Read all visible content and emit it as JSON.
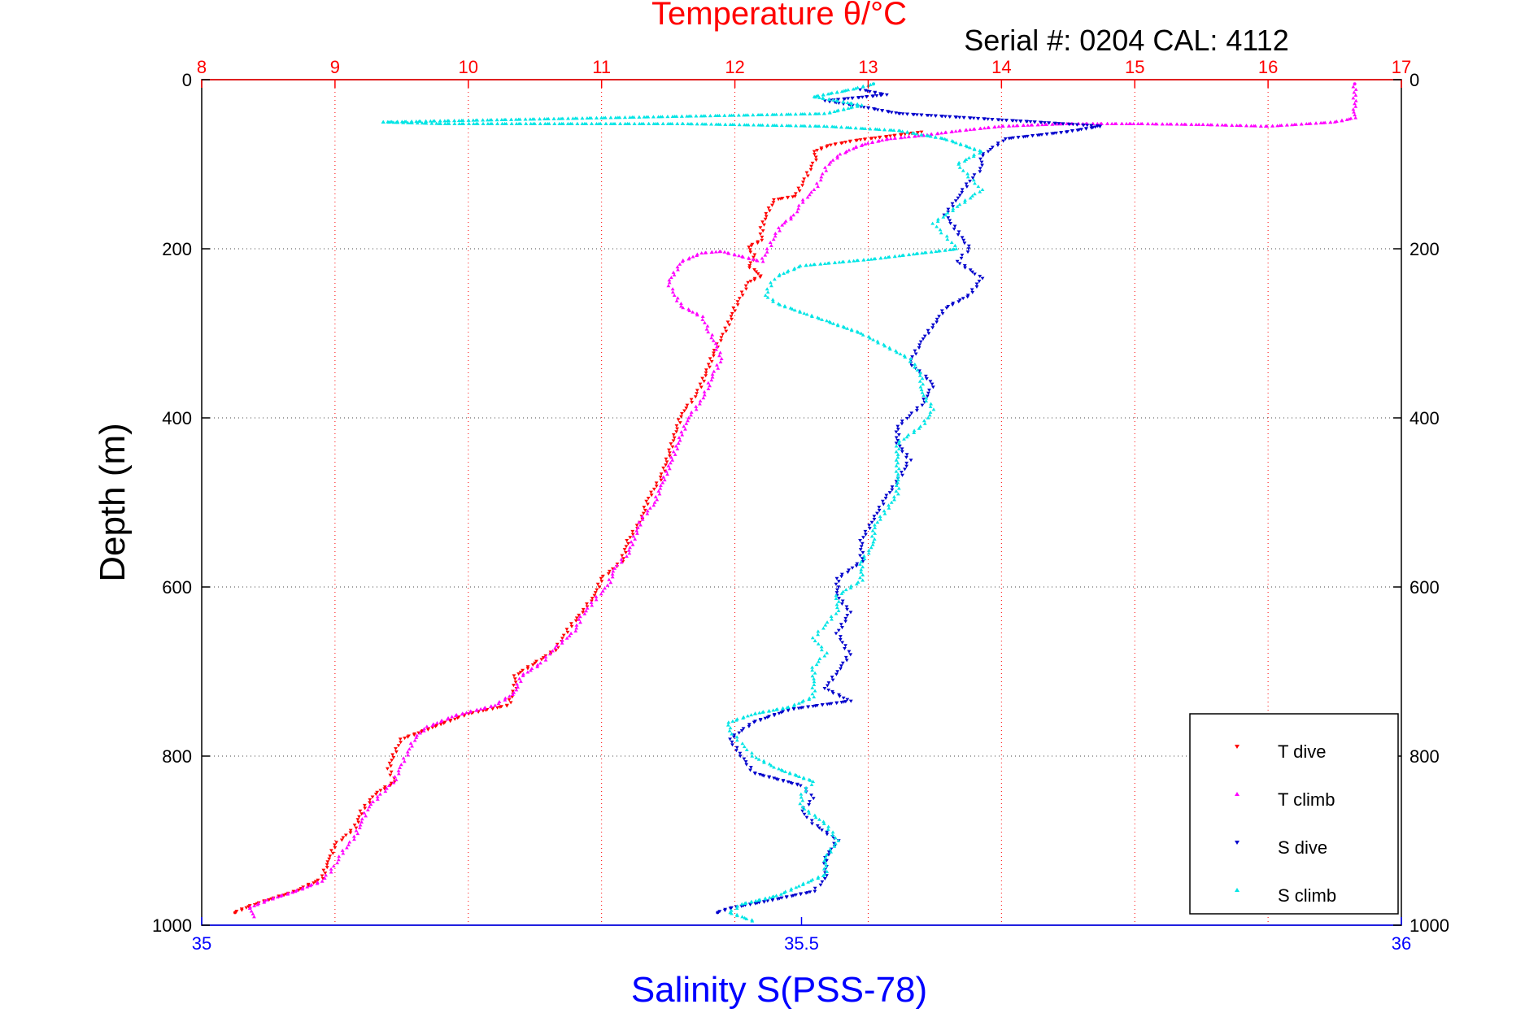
{
  "chart_data": {
    "type": "scatter",
    "title": "Temperature θ/°C",
    "subtitle": "Serial #: 0204  CAL: 4112",
    "ylabel": "Depth (m)",
    "xlabel_bottom": "Salinity S(PSS-78)",
    "xlabel_top": "Temperature θ/°C",
    "top_axis": {
      "range": [
        8,
        17
      ],
      "ticks": [
        8,
        9,
        10,
        11,
        12,
        13,
        14,
        15,
        16,
        17
      ]
    },
    "bottom_axis": {
      "range": [
        35,
        36
      ],
      "ticks": [
        35,
        35.5,
        36
      ]
    },
    "y_axis": {
      "range": [
        0,
        1000
      ],
      "inverted": true,
      "ticks": [
        0,
        200,
        400,
        600,
        800,
        1000
      ]
    },
    "grid": true,
    "legend": {
      "placement": "bottom-right",
      "entries": [
        "T dive",
        "T climb",
        "S dive",
        "S climb"
      ]
    },
    "colors": {
      "temperature_axis": "#ff0000",
      "salinity_axis": "#0000ff",
      "t_dive": "#ff0000",
      "t_climb": "#ff00ff",
      "s_dive": "#0000cc",
      "s_climb": "#00e5e5",
      "grid": "#444444"
    },
    "series": [
      {
        "name": "T dive",
        "axis": "temperature",
        "color": "#ff0000",
        "points": [
          [
            13.4,
            62
          ],
          [
            13.3,
            64
          ],
          [
            13.1,
            68
          ],
          [
            12.9,
            72
          ],
          [
            12.7,
            78
          ],
          [
            12.6,
            85
          ],
          [
            12.6,
            95
          ],
          [
            12.55,
            110
          ],
          [
            12.5,
            125
          ],
          [
            12.45,
            138
          ],
          [
            12.3,
            142
          ],
          [
            12.25,
            155
          ],
          [
            12.2,
            175
          ],
          [
            12.2,
            190
          ],
          [
            12.1,
            198
          ],
          [
            12.15,
            210
          ],
          [
            12.1,
            220
          ],
          [
            12.2,
            232
          ],
          [
            12.1,
            240
          ],
          [
            12.05,
            255
          ],
          [
            12.0,
            270
          ],
          [
            11.95,
            290
          ],
          [
            11.9,
            305
          ],
          [
            11.85,
            320
          ],
          [
            11.8,
            340
          ],
          [
            11.75,
            360
          ],
          [
            11.7,
            375
          ],
          [
            11.6,
            395
          ],
          [
            11.55,
            420
          ],
          [
            11.5,
            445
          ],
          [
            11.45,
            470
          ],
          [
            11.35,
            495
          ],
          [
            11.3,
            520
          ],
          [
            11.2,
            545
          ],
          [
            11.15,
            570
          ],
          [
            11.0,
            590
          ],
          [
            10.95,
            610
          ],
          [
            10.85,
            630
          ],
          [
            10.75,
            650
          ],
          [
            10.65,
            675
          ],
          [
            10.5,
            690
          ],
          [
            10.35,
            705
          ],
          [
            10.35,
            720
          ],
          [
            10.3,
            740
          ],
          [
            10.0,
            750
          ],
          [
            9.75,
            765
          ],
          [
            9.5,
            780
          ],
          [
            9.45,
            795
          ],
          [
            9.4,
            815
          ],
          [
            9.45,
            830
          ],
          [
            9.3,
            845
          ],
          [
            9.2,
            865
          ],
          [
            9.15,
            885
          ],
          [
            9.0,
            905
          ],
          [
            8.95,
            925
          ],
          [
            8.9,
            945
          ],
          [
            8.7,
            960
          ],
          [
            8.5,
            970
          ],
          [
            8.35,
            978
          ],
          [
            8.25,
            985
          ]
        ]
      },
      {
        "name": "T climb",
        "axis": "temperature",
        "color": "#ff00ff",
        "points": [
          [
            8.4,
            990
          ],
          [
            8.35,
            980
          ],
          [
            8.5,
            970
          ],
          [
            8.7,
            960
          ],
          [
            8.9,
            948
          ],
          [
            9.0,
            930
          ],
          [
            9.05,
            915
          ],
          [
            9.15,
            895
          ],
          [
            9.2,
            878
          ],
          [
            9.25,
            860
          ],
          [
            9.35,
            845
          ],
          [
            9.45,
            828
          ],
          [
            9.5,
            810
          ],
          [
            9.55,
            795
          ],
          [
            9.6,
            778
          ],
          [
            9.7,
            765
          ],
          [
            9.9,
            752
          ],
          [
            10.2,
            740
          ],
          [
            10.35,
            725
          ],
          [
            10.4,
            705
          ],
          [
            10.55,
            690
          ],
          [
            10.65,
            672
          ],
          [
            10.8,
            652
          ],
          [
            10.85,
            635
          ],
          [
            10.95,
            615
          ],
          [
            11.05,
            598
          ],
          [
            11.1,
            578
          ],
          [
            11.2,
            560
          ],
          [
            11.25,
            540
          ],
          [
            11.3,
            520
          ],
          [
            11.4,
            500
          ],
          [
            11.45,
            480
          ],
          [
            11.5,
            460
          ],
          [
            11.55,
            440
          ],
          [
            11.6,
            420
          ],
          [
            11.65,
            400
          ],
          [
            11.75,
            380
          ],
          [
            11.8,
            362
          ],
          [
            11.85,
            345
          ],
          [
            11.9,
            330
          ],
          [
            11.85,
            312
          ],
          [
            11.8,
            295
          ],
          [
            11.75,
            280
          ],
          [
            11.6,
            268
          ],
          [
            11.55,
            255
          ],
          [
            11.5,
            240
          ],
          [
            11.55,
            228
          ],
          [
            11.6,
            215
          ],
          [
            11.75,
            205
          ],
          [
            11.9,
            203
          ],
          [
            12.2,
            215
          ],
          [
            12.25,
            200
          ],
          [
            12.3,
            185
          ],
          [
            12.35,
            172
          ],
          [
            12.45,
            160
          ],
          [
            12.5,
            145
          ],
          [
            12.6,
            130
          ],
          [
            12.65,
            115
          ],
          [
            12.7,
            100
          ],
          [
            12.8,
            88
          ],
          [
            12.9,
            80
          ],
          [
            13.0,
            75
          ],
          [
            13.15,
            70
          ],
          [
            13.4,
            66
          ],
          [
            13.7,
            60
          ],
          [
            14.0,
            55
          ],
          [
            14.5,
            52
          ],
          [
            15.0,
            52
          ],
          [
            15.5,
            53
          ],
          [
            16.0,
            55
          ],
          [
            16.5,
            50
          ],
          [
            16.65,
            45
          ],
          [
            16.65,
            35
          ],
          [
            16.65,
            25
          ],
          [
            16.65,
            15
          ],
          [
            16.65,
            5
          ]
        ]
      },
      {
        "name": "S dive",
        "axis": "salinity",
        "color": "#0000cc",
        "points": [
          [
            35.55,
            12
          ],
          [
            35.57,
            18
          ],
          [
            35.52,
            25
          ],
          [
            35.55,
            32
          ],
          [
            35.58,
            40
          ],
          [
            35.75,
            55
          ],
          [
            35.72,
            62
          ],
          [
            35.67,
            70
          ],
          [
            35.66,
            80
          ],
          [
            35.65,
            90
          ],
          [
            35.65,
            105
          ],
          [
            35.64,
            120
          ],
          [
            35.63,
            140
          ],
          [
            35.62,
            160
          ],
          [
            35.63,
            180
          ],
          [
            35.64,
            200
          ],
          [
            35.63,
            215
          ],
          [
            35.65,
            235
          ],
          [
            35.64,
            255
          ],
          [
            35.62,
            270
          ],
          [
            35.61,
            290
          ],
          [
            35.6,
            310
          ],
          [
            35.59,
            335
          ],
          [
            35.61,
            360
          ],
          [
            35.6,
            385
          ],
          [
            35.58,
            410
          ],
          [
            35.58,
            430
          ],
          [
            35.59,
            450
          ],
          [
            35.58,
            475
          ],
          [
            35.57,
            495
          ],
          [
            35.56,
            520
          ],
          [
            35.55,
            545
          ],
          [
            35.55,
            570
          ],
          [
            35.53,
            590
          ],
          [
            35.53,
            610
          ],
          [
            35.54,
            630
          ],
          [
            35.53,
            655
          ],
          [
            35.54,
            680
          ],
          [
            35.53,
            700
          ],
          [
            35.52,
            720
          ],
          [
            35.54,
            735
          ],
          [
            35.49,
            745
          ],
          [
            35.46,
            760
          ],
          [
            35.44,
            780
          ],
          [
            35.45,
            800
          ],
          [
            35.46,
            820
          ],
          [
            35.5,
            835
          ],
          [
            35.51,
            850
          ],
          [
            35.5,
            865
          ],
          [
            35.51,
            880
          ],
          [
            35.53,
            900
          ],
          [
            35.52,
            920
          ],
          [
            35.52,
            945
          ],
          [
            35.51,
            960
          ],
          [
            35.47,
            972
          ],
          [
            35.44,
            980
          ],
          [
            35.43,
            985
          ]
        ]
      },
      {
        "name": "S climb",
        "axis": "salinity",
        "color": "#00e5e5",
        "points": [
          [
            35.46,
            995
          ],
          [
            35.44,
            985
          ],
          [
            35.45,
            975
          ],
          [
            35.48,
            965
          ],
          [
            35.5,
            952
          ],
          [
            35.52,
            940
          ],
          [
            35.52,
            920
          ],
          [
            35.53,
            900
          ],
          [
            35.52,
            880
          ],
          [
            35.5,
            860
          ],
          [
            35.5,
            845
          ],
          [
            35.51,
            830
          ],
          [
            35.48,
            815
          ],
          [
            35.46,
            800
          ],
          [
            35.45,
            785
          ],
          [
            35.44,
            770
          ],
          [
            35.44,
            760
          ],
          [
            35.46,
            750
          ],
          [
            35.49,
            742
          ],
          [
            35.51,
            730
          ],
          [
            35.51,
            712
          ],
          [
            35.51,
            695
          ],
          [
            35.52,
            678
          ],
          [
            35.51,
            660
          ],
          [
            35.52,
            645
          ],
          [
            35.53,
            628
          ],
          [
            35.53,
            610
          ],
          [
            35.55,
            592
          ],
          [
            35.55,
            570
          ],
          [
            35.56,
            550
          ],
          [
            35.56,
            530
          ],
          [
            35.57,
            510
          ],
          [
            35.58,
            490
          ],
          [
            35.58,
            470
          ],
          [
            35.58,
            450
          ],
          [
            35.58,
            430
          ],
          [
            35.6,
            410
          ],
          [
            35.61,
            390
          ],
          [
            35.6,
            370
          ],
          [
            35.6,
            350
          ],
          [
            35.59,
            330
          ],
          [
            35.57,
            315
          ],
          [
            35.55,
            300
          ],
          [
            35.52,
            285
          ],
          [
            35.5,
            275
          ],
          [
            35.48,
            265
          ],
          [
            35.47,
            255
          ],
          [
            35.475,
            240
          ],
          [
            35.48,
            232
          ],
          [
            35.5,
            220
          ],
          [
            35.56,
            212
          ],
          [
            35.6,
            205
          ],
          [
            35.63,
            200
          ],
          [
            35.62,
            185
          ],
          [
            35.61,
            170
          ],
          [
            35.63,
            150
          ],
          [
            35.65,
            130
          ],
          [
            35.64,
            115
          ],
          [
            35.63,
            100
          ],
          [
            35.65,
            85
          ],
          [
            35.62,
            70
          ],
          [
            35.58,
            60
          ],
          [
            35.52,
            55
          ],
          [
            35.4,
            52
          ],
          [
            35.3,
            52
          ],
          [
            35.2,
            52
          ],
          [
            35.15,
            50
          ],
          [
            35.52,
            40
          ],
          [
            35.55,
            30
          ],
          [
            35.51,
            20
          ],
          [
            35.54,
            12
          ],
          [
            35.56,
            5
          ]
        ]
      }
    ]
  }
}
